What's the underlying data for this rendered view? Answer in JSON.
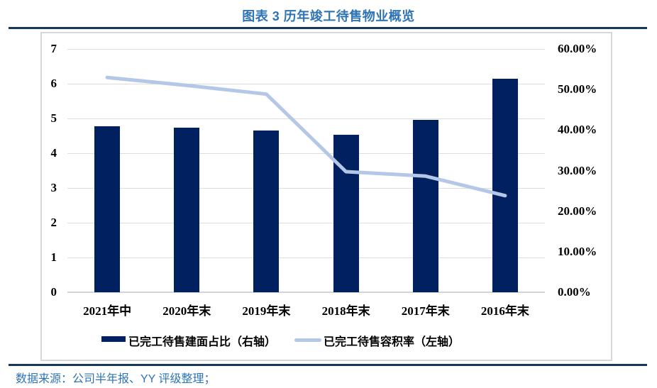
{
  "page": {
    "title": "图表 3 历年竣工待售物业概览",
    "source_note": "数据来源：公司半年报、YY 评级整理；"
  },
  "colors": {
    "title_blue": "#2E74B5",
    "rule_navy": "#17375E",
    "bar_navy": "#002060",
    "line_blue": "#B4C7E7",
    "gridline": "#DDDDDD",
    "axis_line": "#D4D4D4",
    "frame_border": "#D8D8D8",
    "label_black": "#000000"
  },
  "chart_data": {
    "type": "bar",
    "subtype": "combo-bar-line-dual-axis",
    "title": "图表 3 历年竣工待售物业概览",
    "categories": [
      "2021年中",
      "2020年末",
      "2019年末",
      "2018年末",
      "2017年末",
      "2016年末"
    ],
    "series": [
      {
        "name": "已完工待售建面占比（右轴）",
        "chart_type": "bar",
        "axis": "right",
        "values_percent": [
          41.0,
          40.5,
          39.9,
          38.8,
          42.5,
          52.7
        ]
      },
      {
        "name": "已完工待售容积率（左轴）",
        "chart_type": "line",
        "axis": "left",
        "values": [
          6.18,
          5.95,
          5.7,
          3.47,
          3.34,
          2.78
        ]
      }
    ],
    "left_axis": {
      "min": 0,
      "max": 7,
      "tick_labels": [
        "0",
        "1",
        "2",
        "3",
        "4",
        "5",
        "6",
        "7"
      ]
    },
    "right_axis": {
      "min": 0,
      "max": 60,
      "tick_labels": [
        "0.00%",
        "10.00%",
        "20.00%",
        "30.00%",
        "40.00%",
        "50.00%",
        "60.00%"
      ]
    },
    "grid": true,
    "legend_position": "bottom"
  }
}
